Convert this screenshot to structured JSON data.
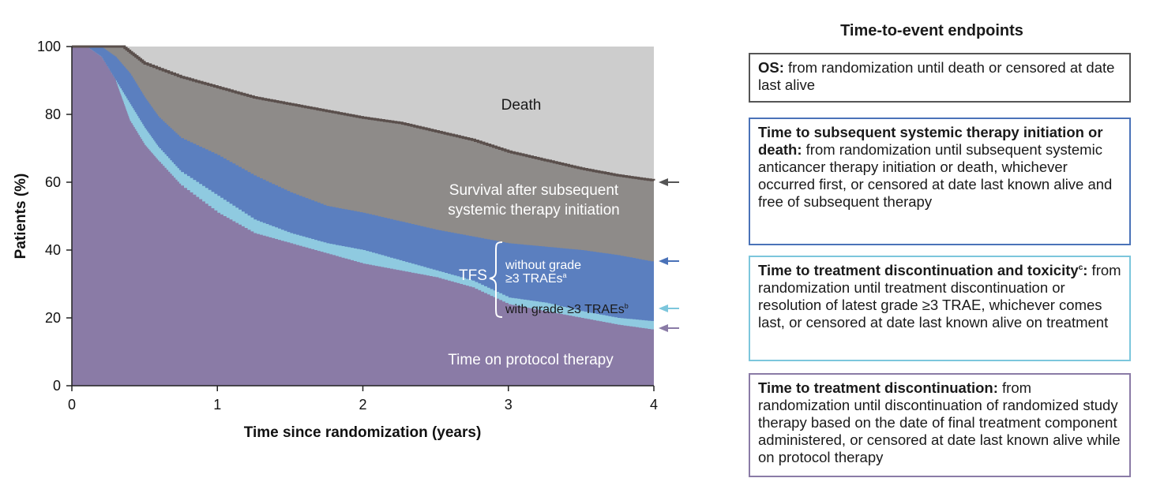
{
  "chart_data": {
    "type": "area",
    "xlabel": "Time since randomization (years)",
    "ylabel": "Patients (%)",
    "xlim": [
      0,
      4
    ],
    "ylim": [
      0,
      100
    ],
    "x_ticks": [
      0,
      1,
      2,
      3,
      4
    ],
    "y_ticks": [
      0,
      20,
      40,
      60,
      80,
      100
    ],
    "grid": false,
    "series": [
      {
        "name": "OS",
        "color": "#8e8b89",
        "line_color": "#5a4f4c",
        "x": [
          0,
          0.35,
          0.5,
          0.75,
          1.0,
          1.25,
          1.5,
          1.75,
          2.0,
          2.25,
          2.5,
          2.75,
          3.0,
          3.25,
          3.5,
          3.75,
          4.0
        ],
        "y": [
          100,
          100,
          95,
          91,
          88,
          85,
          83,
          81,
          79,
          77.5,
          75,
          72.5,
          69,
          66.5,
          64,
          62,
          60.5
        ]
      },
      {
        "name": "Time to subsequent systemic therapy initiation or death",
        "color": "#5b7fbf",
        "x": [
          0,
          0.2,
          0.3,
          0.4,
          0.5,
          0.6,
          0.75,
          1.0,
          1.25,
          1.5,
          1.75,
          2.0,
          2.25,
          2.5,
          2.75,
          3.0,
          3.25,
          3.5,
          3.75,
          4.0
        ],
        "y": [
          100,
          100,
          97,
          92,
          85,
          79,
          73,
          68,
          62,
          57,
          53,
          51,
          48.5,
          46,
          44,
          42,
          41,
          40,
          38.5,
          36.5
        ]
      },
      {
        "name": "Time to treatment discontinuation and toxicity",
        "color": "#8fcae0",
        "x": [
          0,
          0.1,
          0.2,
          0.3,
          0.4,
          0.5,
          0.6,
          0.75,
          1.0,
          1.25,
          1.5,
          1.75,
          2.0,
          2.25,
          2.5,
          2.75,
          3.0,
          3.25,
          3.5,
          3.75,
          4.0
        ],
        "y": [
          100,
          100,
          97,
          90,
          83,
          76,
          70,
          63,
          56,
          49,
          45,
          42,
          40,
          37,
          34,
          31,
          26,
          24.5,
          22,
          20,
          19
        ]
      },
      {
        "name": "Time to treatment discontinuation",
        "color": "#8a7ba6",
        "x": [
          0,
          0.1,
          0.2,
          0.3,
          0.35,
          0.4,
          0.5,
          0.6,
          0.75,
          1.0,
          1.25,
          1.5,
          1.75,
          2.0,
          2.25,
          2.5,
          2.75,
          3.0,
          3.25,
          3.5,
          3.75,
          4.0
        ],
        "y": [
          100,
          100,
          97,
          90,
          84,
          78,
          71,
          66,
          59,
          51,
          45,
          42,
          39,
          36,
          34,
          32,
          29,
          24,
          22,
          20,
          18,
          16.5
        ]
      }
    ],
    "region_labels": {
      "death": "Death",
      "survival_1": "Survival after subsequent",
      "survival_2": "systemic therapy initiation",
      "tfs": "TFS",
      "without_1": "without grade",
      "without_2": "≥3 TRAEs",
      "without_sup": "a",
      "with_1": "with grade ≥3 TRAEs",
      "with_sup": "b",
      "protocol": "Time on protocol therapy"
    }
  },
  "legend_panel": {
    "title": "Time-to-event endpoints",
    "os": {
      "bold": "OS:",
      "text": " from randomization until death or censored at date last alive",
      "color": "#555555"
    },
    "tsst": {
      "bold": "Time to subsequent systemic therapy initiation or death:",
      "text": " from randomization until subsequent systemic anticancer therapy initiation or death, whichever occurred first, or censored at date last known alive and free of subsequent therapy",
      "color": "#4a72b8"
    },
    "ttdt": {
      "bold": "Time to treatment discontinuation and toxicity",
      "sup": "c",
      "bold_after": ":",
      "text": " from randomization until treatment discontinuation or resolution of latest grade ≥3 TRAE, whichever comes last, or censored at date last known alive on treatment",
      "color": "#7cc6dc"
    },
    "ttd": {
      "bold": "Time to treatment discontinuation:",
      "text": " from randomization until discontinuation of randomized study therapy based on the date of final treatment component administered, or censored at date last known alive while on protocol therapy",
      "color": "#8a7ba6"
    }
  }
}
